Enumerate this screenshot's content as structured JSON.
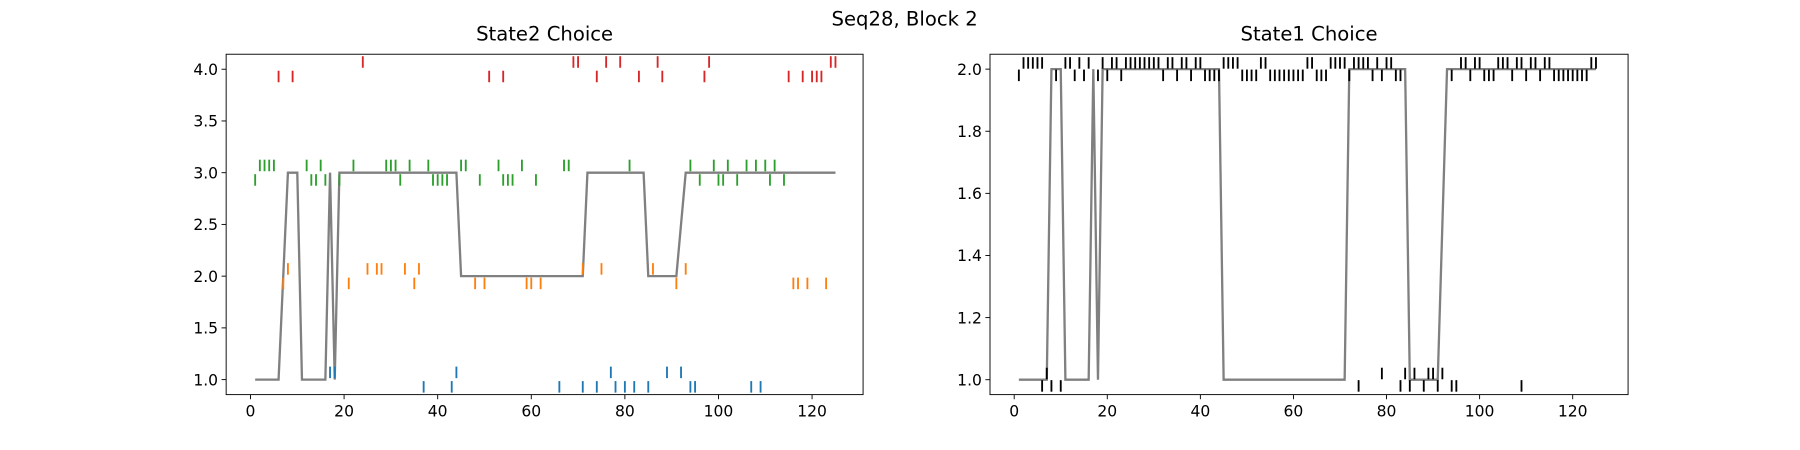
{
  "title": "Seq28, Block 2",
  "chart_data": [
    {
      "type": "line",
      "title": "State2 Choice",
      "xlim": [
        -5.2,
        130.9
      ],
      "ylim": [
        0.855,
        4.145
      ],
      "xticks": [
        0,
        20,
        40,
        60,
        80,
        100,
        120
      ],
      "yticks": [
        {
          "value": 1,
          "label": "1.0"
        },
        {
          "value": 1.5,
          "label": "1.5"
        },
        {
          "value": 2,
          "label": "2.0"
        },
        {
          "value": 2.5,
          "label": "2.5"
        },
        {
          "value": 3,
          "label": "3.0"
        },
        {
          "value": 3.5,
          "label": "3.5"
        },
        {
          "value": 4,
          "label": "4.0"
        }
      ],
      "series": [
        {
          "type": "line",
          "color": "#808080",
          "x": [
            1,
            6,
            8,
            10,
            11,
            16,
            17,
            18,
            19,
            44,
            45,
            71,
            72,
            84,
            85,
            91,
            93,
            125
          ],
          "y": [
            1,
            1,
            3,
            3,
            1,
            1,
            3,
            1,
            3,
            3,
            2,
            2,
            3,
            3,
            2,
            2,
            3,
            3
          ]
        },
        {
          "type": "scatter",
          "color": "#1f77b4",
          "x": [
            37,
            43,
            66,
            71,
            74,
            78,
            80,
            82,
            85,
            94,
            95,
            107,
            109,
            17,
            18,
            44,
            77,
            89,
            92
          ],
          "y": [
            0.93,
            0.93,
            0.93,
            0.93,
            0.93,
            0.93,
            0.93,
            0.93,
            0.93,
            0.93,
            0.93,
            0.93,
            0.93,
            1.07,
            1.07,
            1.07,
            1.07,
            1.07,
            1.07
          ]
        },
        {
          "type": "scatter",
          "color": "#ff7f0e",
          "x": [
            8,
            25,
            27,
            28,
            33,
            36,
            71,
            75,
            86,
            93,
            7,
            21,
            35,
            48,
            50,
            59,
            60,
            62,
            91,
            116,
            117,
            119,
            123
          ],
          "y": [
            2.07,
            2.07,
            2.07,
            2.07,
            2.07,
            2.07,
            2.07,
            2.07,
            2.07,
            2.07,
            1.93,
            1.93,
            1.93,
            1.93,
            1.93,
            1.93,
            1.93,
            1.93,
            1.93,
            1.93,
            1.93,
            1.93,
            1.93
          ]
        },
        {
          "type": "scatter",
          "color": "#2ca02c",
          "x": [
            2,
            3,
            4,
            5,
            12,
            15,
            22,
            29,
            30,
            31,
            34,
            38,
            45,
            46,
            53,
            58,
            67,
            68,
            81,
            94,
            99,
            102,
            106,
            108,
            110,
            112,
            1,
            13,
            14,
            16,
            19,
            32,
            39,
            40,
            41,
            42,
            49,
            54,
            55,
            56,
            61,
            96,
            100,
            101,
            104,
            111,
            114
          ],
          "y": [
            3.07,
            3.07,
            3.07,
            3.07,
            3.07,
            3.07,
            3.07,
            3.07,
            3.07,
            3.07,
            3.07,
            3.07,
            3.07,
            3.07,
            3.07,
            3.07,
            3.07,
            3.07,
            3.07,
            3.07,
            3.07,
            3.07,
            3.07,
            3.07,
            3.07,
            3.07,
            2.93,
            2.93,
            2.93,
            2.93,
            2.93,
            2.93,
            2.93,
            2.93,
            2.93,
            2.93,
            2.93,
            2.93,
            2.93,
            2.93,
            2.93,
            2.93,
            2.93,
            2.93,
            2.93,
            2.93,
            2.93
          ]
        },
        {
          "type": "scatter",
          "color": "#d62728",
          "x": [
            24,
            69,
            70,
            76,
            79,
            87,
            98,
            124,
            125,
            6,
            9,
            51,
            54,
            74,
            83,
            88,
            97,
            115,
            118,
            120,
            121,
            122
          ],
          "y": [
            4.07,
            4.07,
            4.07,
            4.07,
            4.07,
            4.07,
            4.07,
            4.07,
            4.07,
            3.93,
            3.93,
            3.93,
            3.93,
            3.93,
            3.93,
            3.93,
            3.93,
            3.93,
            3.93,
            3.93,
            3.93,
            3.93
          ]
        }
      ]
    },
    {
      "type": "line",
      "title": "State1 Choice",
      "xlim": [
        -5.2,
        131.9
      ],
      "ylim": [
        0.952,
        2.048
      ],
      "xticks": [
        0,
        20,
        40,
        60,
        80,
        100,
        120
      ],
      "yticks": [
        {
          "value": 1,
          "label": "1.0"
        },
        {
          "value": 1.2,
          "label": "1.2"
        },
        {
          "value": 1.4,
          "label": "1.4"
        },
        {
          "value": 1.6,
          "label": "1.6"
        },
        {
          "value": 1.8,
          "label": "1.8"
        },
        {
          "value": 2,
          "label": "2.0"
        }
      ],
      "series": [
        {
          "type": "line",
          "color": "#808080",
          "x": [
            1,
            7,
            8,
            10,
            11,
            16,
            17,
            18,
            19,
            44,
            45,
            71,
            72,
            84,
            85,
            91,
            93,
            125
          ],
          "y": [
            1,
            1,
            2,
            2,
            1,
            1,
            2,
            1,
            2,
            2,
            1,
            1,
            2,
            2,
            1,
            1,
            2,
            2
          ]
        },
        {
          "type": "scatter",
          "color": "#000000",
          "x": [
            2,
            3,
            4,
            5,
            6,
            11,
            12,
            14,
            16,
            19,
            21,
            22,
            24,
            25,
            26,
            27,
            28,
            29,
            30,
            31,
            33,
            34,
            36,
            37,
            39,
            40,
            45,
            46,
            47,
            48,
            53,
            54,
            63,
            64,
            68,
            69,
            70,
            71,
            73,
            74,
            75,
            76,
            78,
            80,
            81,
            96,
            97,
            99,
            100,
            104,
            105,
            106,
            108,
            109,
            111,
            112,
            114,
            115,
            124,
            125,
            1,
            9,
            13,
            15,
            18,
            20,
            23,
            32,
            35,
            38,
            41,
            42,
            43,
            44,
            49,
            50,
            51,
            52,
            55,
            56,
            57,
            58,
            59,
            60,
            61,
            62,
            65,
            66,
            67,
            72,
            77,
            79,
            82,
            83,
            94,
            98,
            101,
            102,
            103,
            107,
            110,
            113,
            116,
            117,
            118,
            119,
            120,
            121,
            122,
            123,
            7,
            79,
            84,
            86,
            89,
            90,
            92,
            6,
            8,
            10,
            74,
            83,
            85,
            88,
            91,
            94,
            95,
            109
          ],
          "y": [
            2.02,
            2.02,
            2.02,
            2.02,
            2.02,
            2.02,
            2.02,
            2.02,
            2.02,
            2.02,
            2.02,
            2.02,
            2.02,
            2.02,
            2.02,
            2.02,
            2.02,
            2.02,
            2.02,
            2.02,
            2.02,
            2.02,
            2.02,
            2.02,
            2.02,
            2.02,
            2.02,
            2.02,
            2.02,
            2.02,
            2.02,
            2.02,
            2.02,
            2.02,
            2.02,
            2.02,
            2.02,
            2.02,
            2.02,
            2.02,
            2.02,
            2.02,
            2.02,
            2.02,
            2.02,
            2.02,
            2.02,
            2.02,
            2.02,
            2.02,
            2.02,
            2.02,
            2.02,
            2.02,
            2.02,
            2.02,
            2.02,
            2.02,
            2.02,
            2.02,
            1.98,
            1.98,
            1.98,
            1.98,
            1.98,
            1.98,
            1.98,
            1.98,
            1.98,
            1.98,
            1.98,
            1.98,
            1.98,
            1.98,
            1.98,
            1.98,
            1.98,
            1.98,
            1.98,
            1.98,
            1.98,
            1.98,
            1.98,
            1.98,
            1.98,
            1.98,
            1.98,
            1.98,
            1.98,
            1.98,
            1.98,
            1.98,
            1.98,
            1.98,
            1.98,
            1.98,
            1.98,
            1.98,
            1.98,
            1.98,
            1.98,
            1.98,
            1.98,
            1.98,
            1.98,
            1.98,
            1.98,
            1.98,
            1.98,
            1.98,
            1.02,
            1.02,
            1.02,
            1.02,
            1.02,
            1.02,
            1.02,
            0.98,
            0.98,
            0.98,
            0.98,
            0.98,
            0.98,
            0.98,
            0.98,
            0.98,
            0.98,
            0.98
          ]
        }
      ]
    }
  ]
}
